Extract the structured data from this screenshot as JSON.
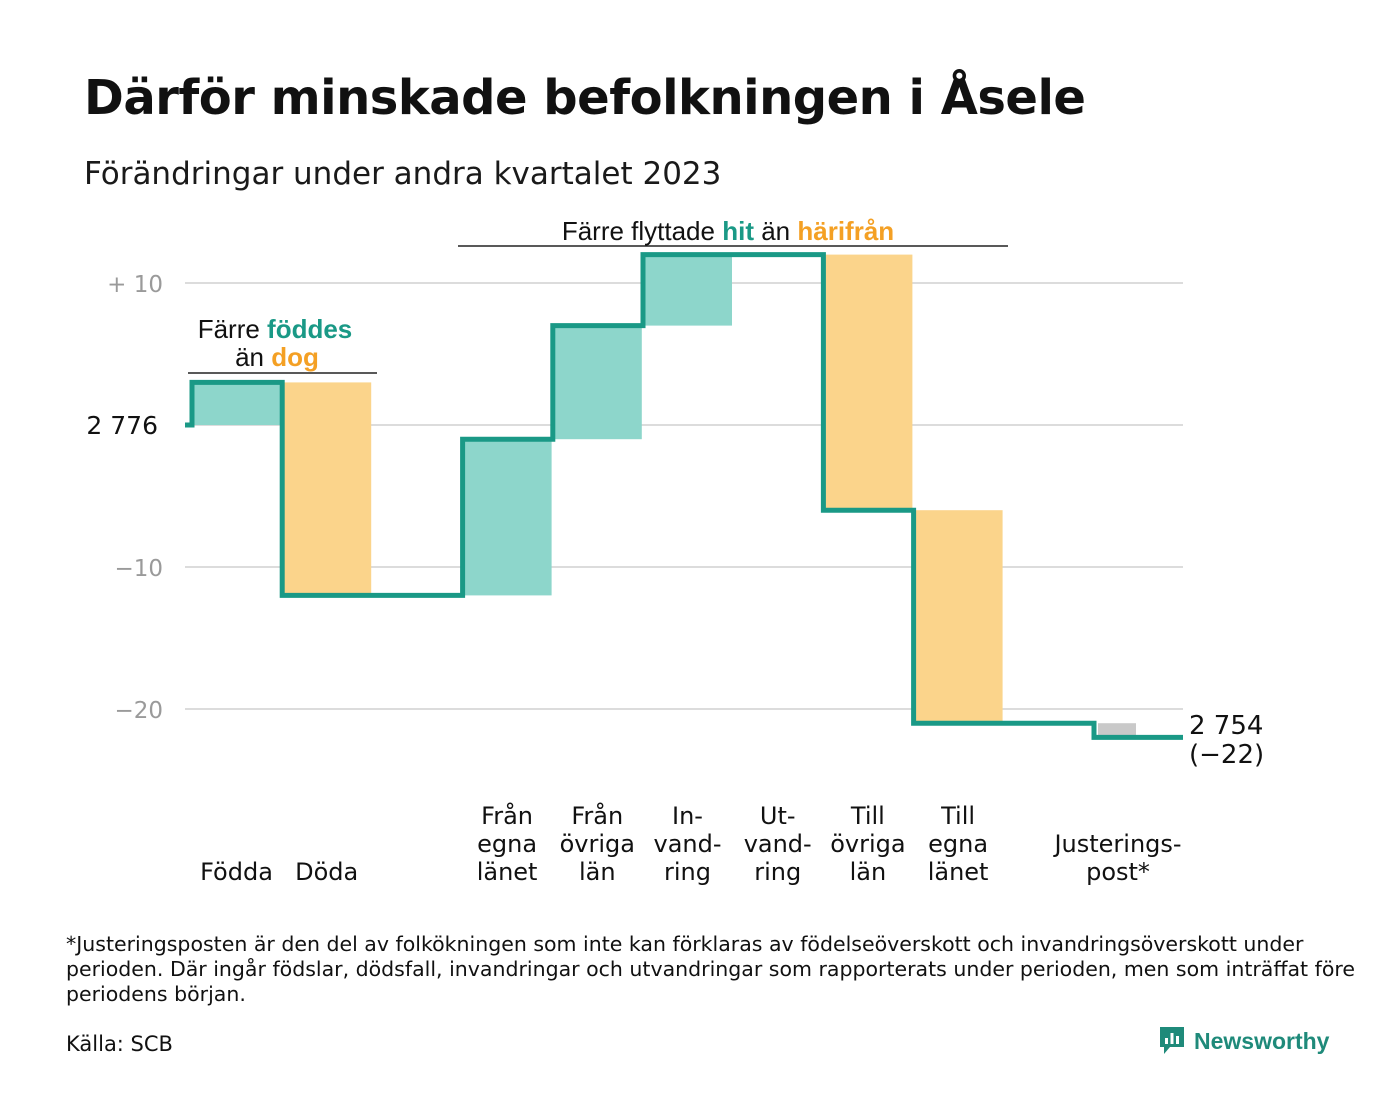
{
  "title": "Därför minskade befolkningen i Åsele",
  "subtitle": "Förändringar under andra kvartalet 2023",
  "colors": {
    "teal": "#1a9986",
    "teal_fill": "#8dd6cb",
    "orange": "#f4a024",
    "orange_fill": "#fbd48b",
    "gray_fill": "#c9c9c9",
    "grid": "#dcdcdc",
    "tick_text": "#9a9a9a"
  },
  "chart_data": {
    "type": "waterfall",
    "start_value": 2776,
    "start_label": "2  776",
    "end_value": 2754,
    "end_label": "2 754",
    "end_change_label": "(−22)",
    "yticks": [
      {
        "value": 10,
        "label": "+  10"
      },
      {
        "value": -10,
        "label": "−10"
      },
      {
        "value": -20,
        "label": "−20"
      }
    ],
    "grid_values": [
      10,
      0,
      -10,
      -20
    ],
    "ylim": [
      -22,
      12
    ],
    "steps": [
      {
        "key": "fodda",
        "label_lines": [
          "Födda"
        ],
        "change": 3,
        "kind": "gain",
        "slot": 0
      },
      {
        "key": "doda",
        "label_lines": [
          "Döda"
        ],
        "change": -15,
        "kind": "loss",
        "slot": 1
      },
      {
        "key": "fran-egna",
        "label_lines": [
          "Från",
          "egna",
          "länet"
        ],
        "change": 11,
        "kind": "gain",
        "slot": 3
      },
      {
        "key": "fran-ovriga",
        "label_lines": [
          "Från",
          "övriga",
          "län"
        ],
        "change": 8,
        "kind": "gain",
        "slot": 4
      },
      {
        "key": "invandring",
        "label_lines": [
          "In-",
          "vand-",
          "ring"
        ],
        "change": 5,
        "kind": "gain",
        "slot": 5
      },
      {
        "key": "utvandring",
        "label_lines": [
          "Ut-",
          "vand-",
          "ring"
        ],
        "change": 0,
        "kind": "loss",
        "slot": 6
      },
      {
        "key": "till-ovriga",
        "label_lines": [
          "Till",
          "övriga",
          "län"
        ],
        "change": -18,
        "kind": "loss",
        "slot": 7
      },
      {
        "key": "till-egna",
        "label_lines": [
          "Till",
          "egna",
          "länet"
        ],
        "change": -15,
        "kind": "loss",
        "slot": 8
      },
      {
        "key": "justering",
        "label_lines": [
          "Justerings-",
          "post*"
        ],
        "change": -1,
        "kind": "adjust",
        "slot": 10
      }
    ],
    "annotations": [
      {
        "key": "births-deaths",
        "line1": [
          {
            "text": "Färre ",
            "style": "plain"
          },
          {
            "text": "föddes",
            "style": "teal"
          }
        ],
        "line2": [
          {
            "text": "än ",
            "style": "plain"
          },
          {
            "text": "dog",
            "style": "orange"
          }
        ]
      },
      {
        "key": "migration",
        "line1": [
          {
            "text": "Färre flyttade ",
            "style": "plain"
          },
          {
            "text": "hit",
            "style": "teal"
          },
          {
            "text": "  än ",
            "style": "plain"
          },
          {
            "text": "härifrån",
            "style": "orange"
          }
        ]
      }
    ]
  },
  "footnote": "*Justeringsposten är den del av folkökningen som inte kan förklaras av födelseöverskott och invandringsöverskott under perioden. Där ingår födslar, dödsfall, invandringar och utvandringar som rapporterats under perioden, men som inträffat före periodens början.",
  "source": "Källa: SCB",
  "brand": {
    "name": "Newsworthy",
    "icon": "newsworthy-logo-icon"
  }
}
